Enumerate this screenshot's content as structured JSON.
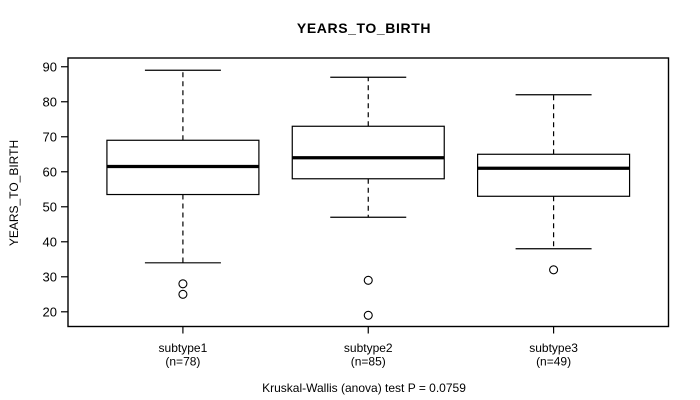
{
  "title": "YEARS_TO_BIRTH",
  "footer": "Kruskal-Wallis (anova) test P = 0.0759",
  "colors": {
    "line": "#000000",
    "box_fill": "#ffffff",
    "background": "#ffffff"
  },
  "chart_data": {
    "type": "boxplot",
    "title": "YEARS_TO_BIRTH",
    "xlabel": "",
    "ylabel": "YEARS_TO_BIRTH",
    "ylim": [
      15.8,
      92.5
    ],
    "yticks": [
      20,
      30,
      40,
      50,
      60,
      70,
      80,
      90
    ],
    "grid": false,
    "annotation": "Kruskal-Wallis (anova) test P = 0.0759",
    "groups": [
      {
        "label": "subtype1",
        "sublabel": "(n=78)",
        "n": 78,
        "whisker_low": 34,
        "q1": 53.5,
        "median": 61.5,
        "q3": 69,
        "whisker_high": 89,
        "outliers": [
          28,
          25
        ]
      },
      {
        "label": "subtype2",
        "sublabel": "(n=85)",
        "n": 85,
        "whisker_low": 47,
        "q1": 58,
        "median": 64,
        "q3": 73,
        "whisker_high": 87,
        "outliers": [
          29,
          19
        ]
      },
      {
        "label": "subtype3",
        "sublabel": "(n=49)",
        "n": 49,
        "whisker_low": 38,
        "q1": 53,
        "median": 61,
        "q3": 65,
        "whisker_high": 82,
        "outliers": [
          32
        ]
      }
    ]
  }
}
